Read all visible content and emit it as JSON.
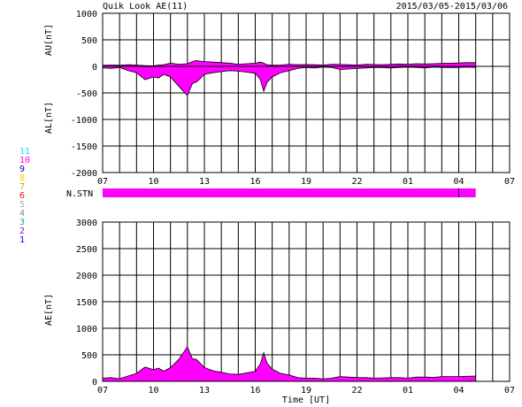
{
  "header": {
    "title": "Quik Look AE(11)",
    "date_range": "2015/03/05-2015/03/06"
  },
  "station_legend": [
    {
      "label": "11",
      "color": "#00e5ff"
    },
    {
      "label": "10",
      "color": "#ff00ff"
    },
    {
      "label": "9",
      "color": "#0000cc"
    },
    {
      "label": "8",
      "color": "#ffcc00"
    },
    {
      "label": "7",
      "color": "#bbbb00"
    },
    {
      "label": "6",
      "color": "#ff0000"
    },
    {
      "label": "5",
      "color": "#aaaaaa"
    },
    {
      "label": "4",
      "color": "#888888"
    },
    {
      "label": "3",
      "color": "#00aaaa"
    },
    {
      "label": "2",
      "color": "#aa00aa"
    },
    {
      "label": "1",
      "color": "#0000ff"
    }
  ],
  "x_ticks": [
    "07",
    "10",
    "13",
    "16",
    "19",
    "22",
    "01",
    "04",
    "07"
  ],
  "colors": {
    "fill": "#ff00ff",
    "line": "#000000",
    "grid": "#000000"
  },
  "chart_data": [
    {
      "type": "area",
      "panel": "AU/AL",
      "ylabel_upper": "AU[nT]",
      "ylabel_lower": "AL[nT]",
      "ylim": [
        -2000,
        1000
      ],
      "yticks": [
        1000,
        500,
        0,
        -500,
        -1000,
        -1500,
        -2000
      ],
      "xlim_hours": [
        0,
        24
      ],
      "grid": true,
      "x_hours": [
        0.0,
        0.5,
        1.0,
        1.5,
        2.0,
        2.5,
        3.0,
        3.3,
        3.6,
        4.0,
        4.5,
        5.0,
        5.3,
        5.5,
        5.7,
        6.0,
        6.5,
        7.0,
        7.5,
        8.0,
        8.5,
        9.0,
        9.3,
        9.5,
        9.7,
        10.0,
        10.5,
        11.0,
        11.5,
        12.0,
        12.5,
        13.0,
        13.5,
        14.0,
        14.5,
        15.0,
        15.5,
        16.0,
        16.5,
        17.0,
        17.5,
        18.0,
        18.5,
        19.0,
        19.5,
        20.0,
        20.5,
        21.0,
        21.5,
        22.0
      ],
      "series": [
        {
          "name": "AU",
          "values": [
            20,
            25,
            20,
            30,
            25,
            15,
            10,
            25,
            30,
            60,
            40,
            50,
            90,
            110,
            100,
            90,
            80,
            70,
            60,
            40,
            50,
            60,
            80,
            60,
            30,
            20,
            25,
            40,
            30,
            35,
            30,
            25,
            40,
            35,
            30,
            25,
            40,
            35,
            30,
            40,
            45,
            40,
            50,
            45,
            50,
            55,
            60,
            65,
            70,
            70
          ]
        },
        {
          "name": "AL",
          "values": [
            -30,
            -40,
            -20,
            -80,
            -120,
            -250,
            -200,
            -220,
            -150,
            -200,
            -380,
            -550,
            -320,
            -300,
            -250,
            -150,
            -120,
            -100,
            -80,
            -90,
            -110,
            -130,
            -250,
            -470,
            -300,
            -200,
            -120,
            -80,
            -40,
            -20,
            -30,
            -15,
            -20,
            -60,
            -50,
            -40,
            -30,
            -20,
            -25,
            -30,
            -20,
            -15,
            -20,
            -30,
            -15,
            -20,
            -25,
            -20,
            -15,
            -20
          ]
        }
      ]
    },
    {
      "type": "bar",
      "panel": "N.STN",
      "label": "N.STN",
      "x_hours": [
        0,
        22
      ],
      "values": [
        10
      ],
      "marker_hour": 21.0
    },
    {
      "type": "area",
      "panel": "AE",
      "ylabel": "AE[nT]",
      "xlabel": "Time [UT]",
      "ylim": [
        0,
        3000
      ],
      "yticks": [
        3000,
        2500,
        2000,
        1500,
        1000,
        500,
        0
      ],
      "xlim_hours": [
        0,
        24
      ],
      "grid": true,
      "x_hours": [
        0.0,
        0.5,
        1.0,
        1.5,
        2.0,
        2.5,
        3.0,
        3.3,
        3.6,
        4.0,
        4.5,
        5.0,
        5.3,
        5.5,
        5.7,
        6.0,
        6.5,
        7.0,
        7.5,
        8.0,
        8.5,
        9.0,
        9.3,
        9.5,
        9.7,
        10.0,
        10.5,
        11.0,
        11.5,
        12.0,
        12.5,
        13.0,
        13.5,
        14.0,
        14.5,
        15.0,
        15.5,
        16.0,
        16.5,
        17.0,
        17.5,
        18.0,
        18.5,
        19.0,
        19.5,
        20.0,
        20.5,
        21.0,
        21.5,
        22.0
      ],
      "values": [
        60,
        70,
        50,
        100,
        150,
        270,
        220,
        250,
        190,
        260,
        420,
        650,
        420,
        420,
        360,
        260,
        200,
        170,
        140,
        130,
        160,
        190,
        330,
        540,
        340,
        230,
        150,
        120,
        70,
        60,
        60,
        45,
        60,
        90,
        80,
        70,
        70,
        60,
        65,
        70,
        70,
        60,
        80,
        80,
        75,
        90,
        90,
        90,
        95,
        100
      ]
    }
  ]
}
